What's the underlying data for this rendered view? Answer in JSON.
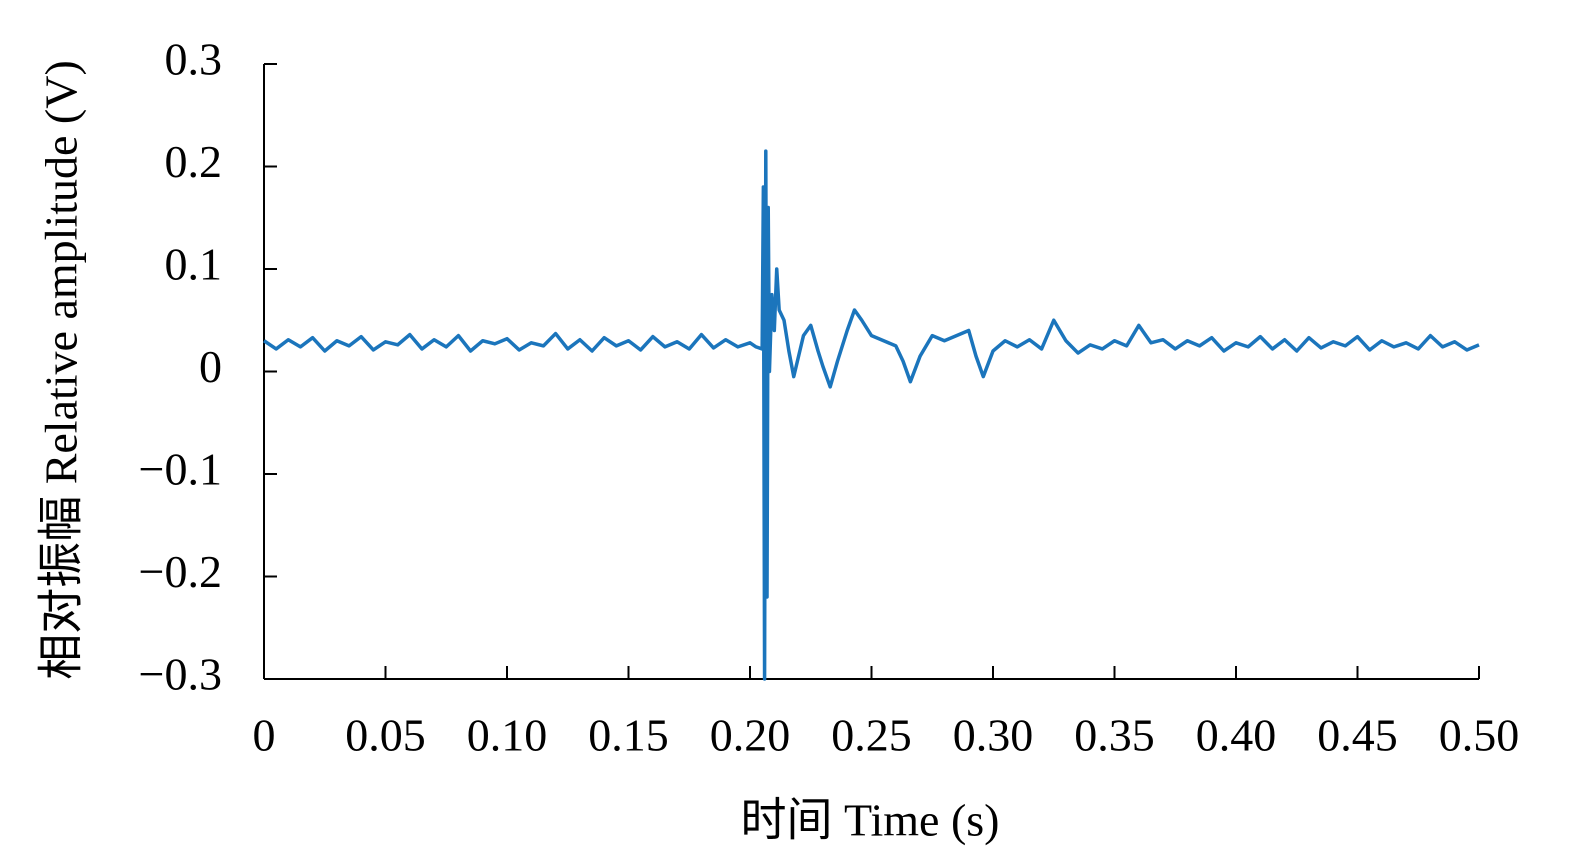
{
  "chart_data": {
    "type": "line",
    "xlabel": "时间 Time (s)",
    "ylabel": "相对振幅 Relative amplitude (V)",
    "xlim": [
      0,
      0.5
    ],
    "ylim": [
      -0.3,
      0.3
    ],
    "xticks": [
      0,
      0.05,
      {
        "value": 0.1,
        "label": "0.10"
      },
      0.15,
      {
        "value": 0.2,
        "label": "0.20"
      },
      0.25,
      {
        "value": 0.3,
        "label": "0.30"
      },
      0.35,
      {
        "value": 0.4,
        "label": "0.40"
      },
      0.45,
      {
        "value": 0.5,
        "label": "0.50"
      }
    ],
    "yticks": [
      {
        "value": -0.3,
        "label": "−0.3"
      },
      {
        "value": -0.2,
        "label": "−0.2"
      },
      {
        "value": -0.1,
        "label": "−0.1"
      },
      0,
      0.1,
      0.2,
      0.3
    ],
    "grid": false,
    "series": [
      {
        "color": "#1b75bc",
        "x": [
          0,
          0.005,
          0.01,
          0.015,
          0.02,
          0.025,
          0.03,
          0.035,
          0.04,
          0.045,
          0.05,
          0.055,
          0.06,
          0.065,
          0.07,
          0.075,
          0.08,
          0.085,
          0.09,
          0.095,
          0.1,
          0.105,
          0.11,
          0.115,
          0.12,
          0.125,
          0.13,
          0.135,
          0.14,
          0.145,
          0.15,
          0.155,
          0.16,
          0.165,
          0.17,
          0.175,
          0.18,
          0.185,
          0.19,
          0.195,
          0.2,
          0.2025,
          0.205,
          0.2055,
          0.206,
          0.2065,
          0.207,
          0.2075,
          0.208,
          0.209,
          0.21,
          0.211,
          0.212,
          0.214,
          0.216,
          0.218,
          0.22,
          0.222,
          0.225,
          0.228,
          0.23,
          0.233,
          0.236,
          0.24,
          0.243,
          0.246,
          0.25,
          0.255,
          0.26,
          0.263,
          0.266,
          0.27,
          0.275,
          0.28,
          0.285,
          0.29,
          0.293,
          0.296,
          0.3,
          0.305,
          0.31,
          0.315,
          0.32,
          0.325,
          0.33,
          0.335,
          0.34,
          0.345,
          0.35,
          0.355,
          0.36,
          0.365,
          0.37,
          0.375,
          0.38,
          0.385,
          0.39,
          0.395,
          0.4,
          0.405,
          0.41,
          0.415,
          0.42,
          0.425,
          0.43,
          0.435,
          0.44,
          0.445,
          0.45,
          0.455,
          0.46,
          0.465,
          0.47,
          0.475,
          0.48,
          0.485,
          0.49,
          0.495,
          0.5
        ],
        "values": [
          0.03,
          0.022,
          0.031,
          0.024,
          0.033,
          0.02,
          0.03,
          0.025,
          0.034,
          0.021,
          0.029,
          0.026,
          0.036,
          0.022,
          0.031,
          0.024,
          0.035,
          0.02,
          0.03,
          0.027,
          0.032,
          0.021,
          0.028,
          0.025,
          0.037,
          0.022,
          0.031,
          0.02,
          0.033,
          0.025,
          0.03,
          0.021,
          0.034,
          0.024,
          0.029,
          0.022,
          0.036,
          0.023,
          0.031,
          0.024,
          0.028,
          0.024,
          0.022,
          0.18,
          -0.3,
          0.215,
          -0.22,
          0.16,
          0.0,
          0.075,
          0.04,
          0.1,
          0.06,
          0.05,
          0.02,
          -0.005,
          0.015,
          0.035,
          0.045,
          0.02,
          0.005,
          -0.015,
          0.01,
          0.04,
          0.06,
          0.05,
          0.035,
          0.03,
          0.025,
          0.01,
          -0.01,
          0.015,
          0.035,
          0.03,
          0.035,
          0.04,
          0.015,
          -0.005,
          0.02,
          0.03,
          0.024,
          0.031,
          0.022,
          0.05,
          0.03,
          0.018,
          0.026,
          0.022,
          0.03,
          0.025,
          0.045,
          0.028,
          0.031,
          0.022,
          0.03,
          0.025,
          0.033,
          0.02,
          0.028,
          0.024,
          0.034,
          0.022,
          0.031,
          0.02,
          0.033,
          0.023,
          0.029,
          0.025,
          0.034,
          0.021,
          0.03,
          0.024,
          0.028,
          0.022,
          0.035,
          0.024,
          0.029,
          0.021,
          0.026
        ]
      }
    ]
  }
}
